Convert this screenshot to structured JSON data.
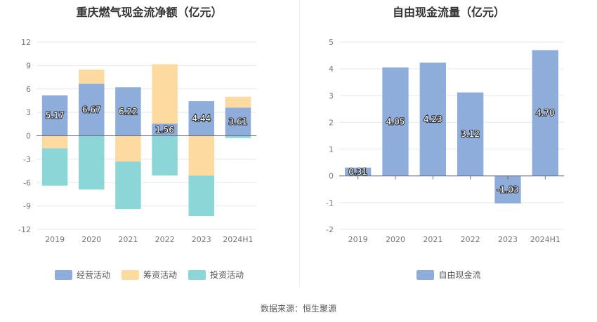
{
  "footer": {
    "source": "数据来源：恒生聚源"
  },
  "chart_data": [
    {
      "type": "bar",
      "stacked": true,
      "title": "重庆燃气现金流净额（亿元）",
      "categories": [
        "2019",
        "2020",
        "2021",
        "2022",
        "2023",
        "2024H1"
      ],
      "ylim": [
        -12,
        12
      ],
      "yticks": [
        "12",
        "9",
        "6",
        "3",
        "0",
        "-3",
        "-6",
        "-9",
        "-12"
      ],
      "grid": true,
      "legend_position": "bottom",
      "series": [
        {
          "name": "经营活动",
          "color": "#8eaddb",
          "values": [
            5.17,
            6.67,
            6.22,
            1.56,
            4.44,
            3.61
          ],
          "labels": [
            "5.17",
            "6.67",
            "6.22",
            "1.56",
            "4.44",
            "3.61"
          ]
        },
        {
          "name": "筹资活动",
          "color": "#fddba0",
          "values": [
            -1.6,
            1.8,
            -3.3,
            7.6,
            -5.1,
            1.4
          ]
        },
        {
          "name": "投资活动",
          "color": "#8dd6d8",
          "values": [
            -4.8,
            -6.9,
            -6.1,
            -5.1,
            -5.2,
            -0.3
          ]
        }
      ]
    },
    {
      "type": "bar",
      "title": "自由现金流量（亿元）",
      "categories": [
        "2019",
        "2020",
        "2021",
        "2022",
        "2023",
        "2024H1"
      ],
      "ylim": [
        -2,
        5
      ],
      "yticks": [
        "5",
        "4",
        "3",
        "2",
        "1",
        "0",
        "-1",
        "-2"
      ],
      "grid": true,
      "legend_position": "bottom",
      "series": [
        {
          "name": "自由现金流",
          "color": "#8eaddb",
          "values": [
            0.31,
            4.05,
            4.23,
            3.12,
            -1.03,
            4.7
          ],
          "labels": [
            "0.31",
            "4.05",
            "4.23",
            "3.12",
            "-1.03",
            "4.70"
          ]
        }
      ]
    }
  ]
}
